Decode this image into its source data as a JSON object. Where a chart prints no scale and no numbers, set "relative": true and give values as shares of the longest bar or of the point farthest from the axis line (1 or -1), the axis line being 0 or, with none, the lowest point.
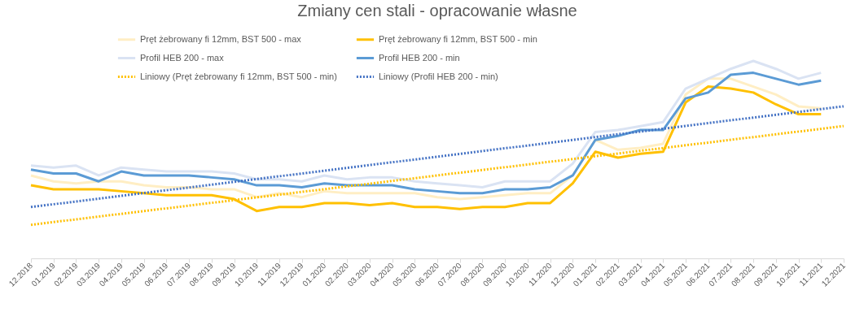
{
  "chart_data": {
    "type": "line",
    "title": "Zmiany cen stali - opracowanie własne",
    "relative": true,
    "legend": "top",
    "categories": [
      "12.2018",
      "01.2019",
      "02.2019",
      "03.2019",
      "04.2019",
      "05.2019",
      "06.2019",
      "07.2019",
      "08.2019",
      "09.2019",
      "10.2019",
      "11.2019",
      "12.2019",
      "01.2020",
      "02.2020",
      "03.2020",
      "04.2020",
      "05.2020",
      "06.2020",
      "07.2020",
      "08.2020",
      "09.2020",
      "10.2020",
      "11.2020",
      "12.2020",
      "01.2021",
      "02.2021",
      "03.2021",
      "04.2021",
      "05.2021",
      "06.2021",
      "07.2021",
      "08.2021",
      "09.2021",
      "10.2021",
      "11.2021",
      "12.2021"
    ],
    "series": [
      {
        "name": "Pręt żebrowany fi 12mm, BST 500 - max",
        "color": "#ffeec4",
        "line_style": "solid",
        "values": [
          0.42,
          0.39,
          0.38,
          0.39,
          0.39,
          0.37,
          0.36,
          0.36,
          0.35,
          0.35,
          0.31,
          0.33,
          0.31,
          0.34,
          0.33,
          0.33,
          0.33,
          0.33,
          0.31,
          0.3,
          0.31,
          0.32,
          0.33,
          0.33,
          0.42,
          0.6,
          0.55,
          0.56,
          0.58,
          0.83,
          0.91,
          0.91,
          0.87,
          0.83,
          0.77,
          0.76,
          null
        ]
      },
      {
        "name": "Pręt żebrowany fi 12mm, BST 500 - min",
        "color": "#ffc000",
        "line_style": "solid",
        "values": [
          0.37,
          0.35,
          0.35,
          0.35,
          0.34,
          0.33,
          0.32,
          0.32,
          0.32,
          0.3,
          0.24,
          0.26,
          0.26,
          0.28,
          0.28,
          0.27,
          0.28,
          0.26,
          0.26,
          0.25,
          0.26,
          0.26,
          0.28,
          0.28,
          0.38,
          0.54,
          0.51,
          0.53,
          0.54,
          0.79,
          0.87,
          0.86,
          0.84,
          0.78,
          0.73,
          0.73,
          null
        ]
      },
      {
        "name": "Profil HEB 200 - max",
        "color": "#dae3f3",
        "line_style": "solid",
        "values": [
          0.47,
          0.46,
          0.47,
          0.42,
          0.46,
          0.45,
          0.44,
          0.44,
          0.44,
          0.43,
          0.4,
          0.4,
          0.39,
          0.42,
          0.4,
          0.41,
          0.41,
          0.39,
          0.38,
          0.37,
          0.36,
          0.39,
          0.39,
          0.39,
          0.48,
          0.64,
          0.65,
          0.67,
          0.69,
          0.86,
          0.91,
          0.96,
          1,
          0.96,
          0.91,
          0.94,
          null
        ]
      },
      {
        "name": "Profil HEB 200 - min",
        "color": "#5b9bd5",
        "line_style": "solid",
        "values": [
          0.45,
          0.43,
          0.43,
          0.39,
          0.44,
          0.42,
          0.42,
          0.42,
          0.41,
          0.4,
          0.37,
          0.37,
          0.36,
          0.38,
          0.37,
          0.37,
          0.37,
          0.35,
          0.34,
          0.33,
          0.33,
          0.35,
          0.35,
          0.36,
          0.42,
          0.6,
          0.62,
          0.65,
          0.65,
          0.81,
          0.84,
          0.93,
          0.94,
          0.91,
          0.88,
          0.9,
          null
        ]
      },
      {
        "name": "Liniowy (Pręt żebrowany fi 12mm, BST 500 - min)",
        "color": "#ffc000",
        "line_style": "dotted",
        "x": [
          "12.2018",
          "12.2021"
        ],
        "values": [
          0.17,
          0.67
        ]
      },
      {
        "name": "Liniowy (Profil HEB 200 - min)",
        "color": "#4472c4",
        "line_style": "dotted",
        "x": [
          "12.2018",
          "12.2021"
        ],
        "values": [
          0.26,
          0.77
        ]
      }
    ]
  }
}
